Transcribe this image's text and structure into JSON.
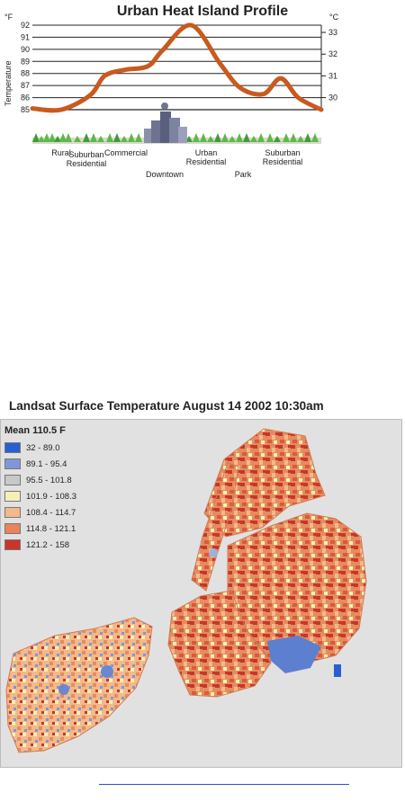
{
  "heat_profile": {
    "title": "Urban Heat Island Profile",
    "left_unit": "°F",
    "right_unit": "°C",
    "y_label": "Temperature",
    "left_ticks": [
      "85",
      "86",
      "87",
      "88",
      "89",
      "90",
      "91",
      "92"
    ],
    "right_ticks": [
      "30",
      "31",
      "32",
      "33"
    ],
    "categories": [
      {
        "label": [
          "Rural"
        ]
      },
      {
        "label": [
          "Suburban",
          "Residential"
        ]
      },
      {
        "label": [
          "Commercial"
        ]
      },
      {
        "label": [
          "Downtown"
        ]
      },
      {
        "label": [
          "Urban",
          "Residential"
        ]
      },
      {
        "label": [
          "Park"
        ]
      },
      {
        "label": [
          "Suburban",
          "Residential"
        ]
      }
    ]
  },
  "chart_data": {
    "type": "line",
    "title": "Urban Heat Island Profile",
    "ylabel": "Temperature",
    "yunits": {
      "left": "°F",
      "right": "°C"
    },
    "ylim": [
      85,
      92
    ],
    "categories": [
      "Rural",
      "Suburban Residential",
      "Commercial",
      "Downtown",
      "Urban Residential",
      "Park",
      "Suburban Residential"
    ],
    "x": [
      0.0,
      0.1,
      0.2,
      0.25,
      0.32,
      0.4,
      0.45,
      0.55,
      0.65,
      0.72,
      0.8,
      0.86,
      0.92,
      1.0
    ],
    "y": [
      85.1,
      85.0,
      86.2,
      87.8,
      88.3,
      88.6,
      89.9,
      92.0,
      88.8,
      86.8,
      86.3,
      87.6,
      86.0,
      85.0
    ],
    "line_color": "#c85a1e",
    "grid": true
  },
  "landsat": {
    "title": "Landsat Surface Temperature August 14 2002 10:30am",
    "legend_title": "Mean 110.5 F",
    "legend": [
      {
        "label": "32 - 89.0",
        "color": "#2a5fd0"
      },
      {
        "label": "89.1 - 95.4",
        "color": "#7f97d6"
      },
      {
        "label": "95.5 - 101.8",
        "color": "#c8c8c8"
      },
      {
        "label": "101.9 - 108.3",
        "color": "#f6f0b6"
      },
      {
        "label": "108.4 - 114.7",
        "color": "#f3b98b"
      },
      {
        "label": "114.8 - 121.1",
        "color": "#e9835c"
      },
      {
        "label": "121.2 - 158",
        "color": "#c9352b"
      }
    ]
  }
}
